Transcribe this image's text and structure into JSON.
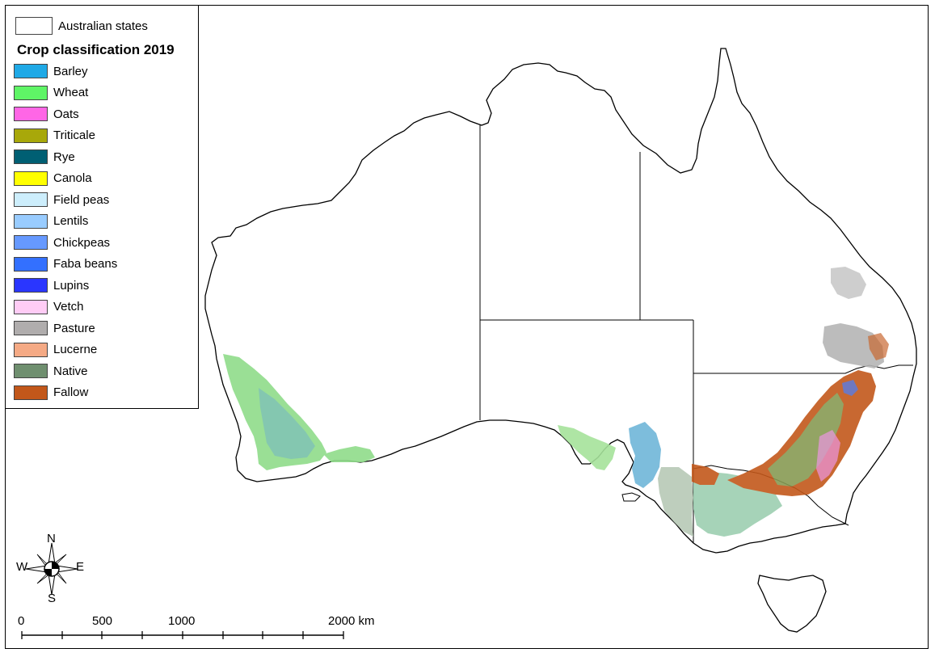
{
  "legend": {
    "states_label": "Australian states",
    "title": "Crop classification 2019",
    "items": [
      {
        "label": "Barley",
        "color": "#1fa9e6"
      },
      {
        "label": "Wheat",
        "color": "#5ff566"
      },
      {
        "label": "Oats",
        "color": "#ff66e6"
      },
      {
        "label": "Triticale",
        "color": "#a8a80a"
      },
      {
        "label": "Rye",
        "color": "#005f73"
      },
      {
        "label": "Canola",
        "color": "#ffff00"
      },
      {
        "label": "Field peas",
        "color": "#cdeefc"
      },
      {
        "label": "Lentils",
        "color": "#99ccff"
      },
      {
        "label": "Chickpeas",
        "color": "#6699ff"
      },
      {
        "label": "Faba beans",
        "color": "#3370ff"
      },
      {
        "label": "Lupins",
        "color": "#2a36ff"
      },
      {
        "label": "Vetch",
        "color": "#ffccf5"
      },
      {
        "label": "Pasture",
        "color": "#b0adad"
      },
      {
        "label": "Lucerne",
        "color": "#f5aa85"
      },
      {
        "label": "Native",
        "color": "#6f8f6f"
      },
      {
        "label": "Fallow",
        "color": "#c2571a"
      }
    ]
  },
  "compass": {
    "n": "N",
    "s": "S",
    "e": "E",
    "w": "W"
  },
  "scale_bar": {
    "labels": [
      "0",
      "500",
      "1000",
      "2000 km"
    ]
  }
}
